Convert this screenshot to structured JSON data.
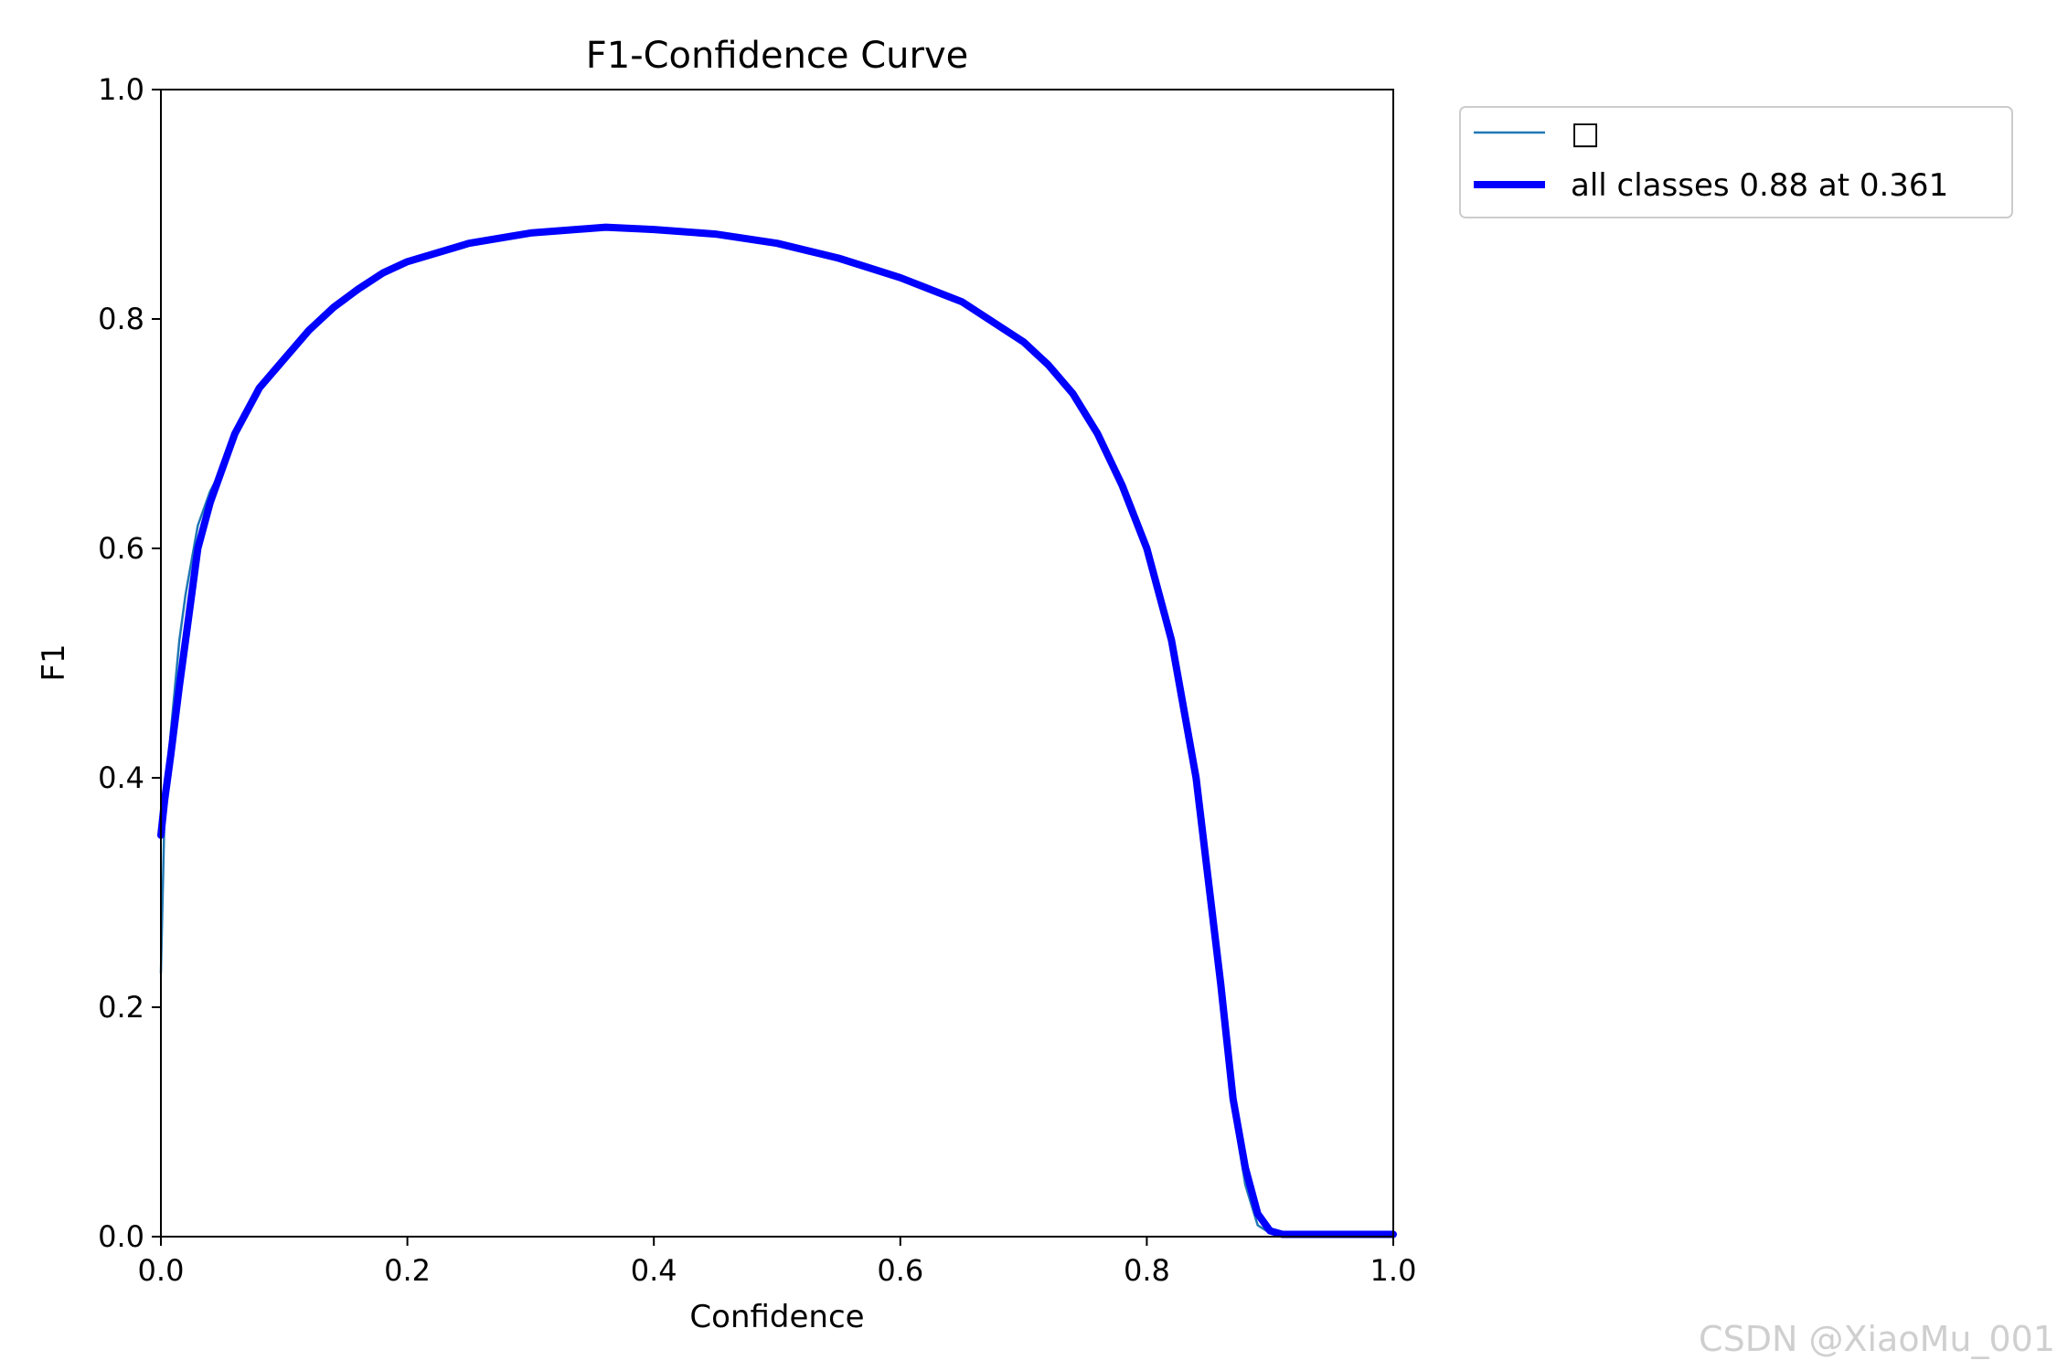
{
  "chart_data": {
    "type": "line",
    "title": "F1-Confidence Curve",
    "xlabel": "Confidence",
    "ylabel": "F1",
    "xlim": [
      0.0,
      1.0
    ],
    "ylim": [
      0.0,
      1.0
    ],
    "xticks": [
      "0.0",
      "0.2",
      "0.4",
      "0.6",
      "0.8",
      "1.0"
    ],
    "yticks": [
      "0.0",
      "0.2",
      "0.4",
      "0.6",
      "0.8",
      "1.0"
    ],
    "grid": false,
    "legend_position": "outside-top-right",
    "series": [
      {
        "name": "□",
        "color": "#1f77b4",
        "style": "thin",
        "x": [
          0.0,
          0.003,
          0.008,
          0.015,
          0.02,
          0.03,
          0.04,
          0.05,
          0.06,
          0.08,
          0.1,
          0.12,
          0.14,
          0.16,
          0.18,
          0.2,
          0.25,
          0.3,
          0.361,
          0.4,
          0.45,
          0.5,
          0.55,
          0.6,
          0.65,
          0.7,
          0.72,
          0.74,
          0.76,
          0.78,
          0.8,
          0.82,
          0.84,
          0.86,
          0.87,
          0.88,
          0.89,
          0.9,
          0.91,
          0.92,
          0.95,
          1.0
        ],
        "y": [
          0.23,
          0.37,
          0.44,
          0.52,
          0.56,
          0.62,
          0.65,
          0.67,
          0.7,
          0.74,
          0.765,
          0.79,
          0.81,
          0.826,
          0.84,
          0.85,
          0.866,
          0.875,
          0.88,
          0.878,
          0.874,
          0.866,
          0.853,
          0.836,
          0.815,
          0.78,
          0.76,
          0.735,
          0.7,
          0.655,
          0.6,
          0.52,
          0.4,
          0.22,
          0.11,
          0.045,
          0.01,
          0.003,
          0.002,
          0.002,
          0.002,
          0.002
        ]
      },
      {
        "name": "all classes 0.88 at 0.361",
        "color": "#0000ff",
        "style": "thick",
        "x": [
          0.0,
          0.003,
          0.008,
          0.015,
          0.02,
          0.03,
          0.04,
          0.05,
          0.06,
          0.08,
          0.1,
          0.12,
          0.14,
          0.16,
          0.18,
          0.2,
          0.25,
          0.3,
          0.361,
          0.4,
          0.45,
          0.5,
          0.55,
          0.6,
          0.65,
          0.7,
          0.72,
          0.74,
          0.76,
          0.78,
          0.8,
          0.82,
          0.84,
          0.86,
          0.87,
          0.88,
          0.89,
          0.9,
          0.91,
          0.92,
          0.95,
          1.0
        ],
        "y": [
          0.35,
          0.38,
          0.42,
          0.48,
          0.52,
          0.6,
          0.64,
          0.67,
          0.7,
          0.74,
          0.765,
          0.79,
          0.81,
          0.826,
          0.84,
          0.85,
          0.866,
          0.875,
          0.88,
          0.878,
          0.874,
          0.866,
          0.853,
          0.836,
          0.815,
          0.78,
          0.76,
          0.735,
          0.7,
          0.655,
          0.6,
          0.52,
          0.4,
          0.22,
          0.12,
          0.06,
          0.02,
          0.005,
          0.002,
          0.002,
          0.002,
          0.002
        ]
      }
    ]
  },
  "watermark": "CSDN @XiaoMu_001"
}
